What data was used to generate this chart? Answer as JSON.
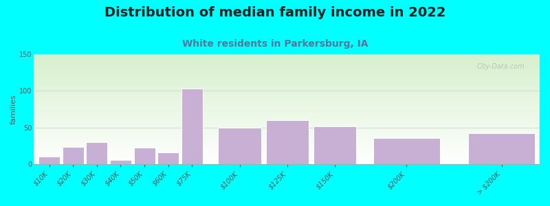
{
  "title": "Distribution of median family income in 2022",
  "subtitle": "White residents in Parkersburg, IA",
  "ylabel": "families",
  "background_outer": "#00FFFF",
  "background_inner_top": "#d6f0cc",
  "background_inner_bottom": "#ffffff",
  "bar_color": "#c8afd4",
  "bar_edge_color": "#ffffff",
  "categories": [
    "$10K",
    "$20K",
    "$30K",
    "$40K",
    "$50K",
    "$60K",
    "$75K",
    "$100K",
    "$125K",
    "$150K",
    "$200K",
    "> $200K"
  ],
  "values": [
    10,
    23,
    30,
    5,
    22,
    16,
    103,
    50,
    60,
    51,
    35,
    42
  ],
  "bar_positions": [
    0.5,
    1.0,
    1.5,
    2.0,
    2.5,
    3.0,
    3.5,
    4.5,
    5.5,
    6.5,
    8.0,
    10.0
  ],
  "bar_widths": [
    0.45,
    0.45,
    0.45,
    0.45,
    0.45,
    0.45,
    0.45,
    0.9,
    0.9,
    0.9,
    1.4,
    1.4
  ],
  "ylim": [
    0,
    150
  ],
  "yticks": [
    0,
    50,
    100,
    150
  ],
  "watermark": "City-Data.com",
  "title_fontsize": 14,
  "subtitle_fontsize": 10,
  "ylabel_fontsize": 8,
  "tick_fontsize": 7,
  "title_color": "#222222",
  "subtitle_color": "#557799"
}
